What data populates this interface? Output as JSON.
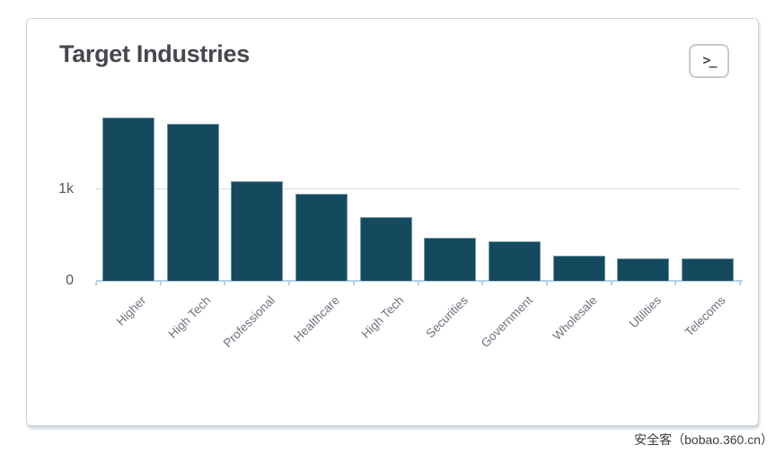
{
  "panel": {
    "title": "Target Industries",
    "toolbar": {
      "open_in_search_glyph": ">_"
    }
  },
  "chart_data": {
    "type": "bar",
    "title": "Target Industries",
    "categories": [
      "Higher",
      "High Tech",
      "Professional",
      "Healthcare",
      "High Tech",
      "Securities",
      "Government",
      "Wholesale",
      "Utilities",
      "Telecoms"
    ],
    "values": [
      1780,
      1710,
      1090,
      950,
      700,
      470,
      430,
      270,
      245,
      245
    ],
    "xlabel": "",
    "ylabel": "",
    "ylim": [
      0,
      1900
    ],
    "yticks": [
      {
        "label": "0",
        "value": 0
      },
      {
        "label": "1k",
        "value": 1000
      }
    ],
    "grid": "horizontal",
    "legend": "none",
    "x_tick_rotation_deg": -45,
    "bar_color": "#15495e",
    "bar_border_color": "#6f98ac"
  },
  "watermark": {
    "text": "安全客（bobao.360.cn）"
  }
}
